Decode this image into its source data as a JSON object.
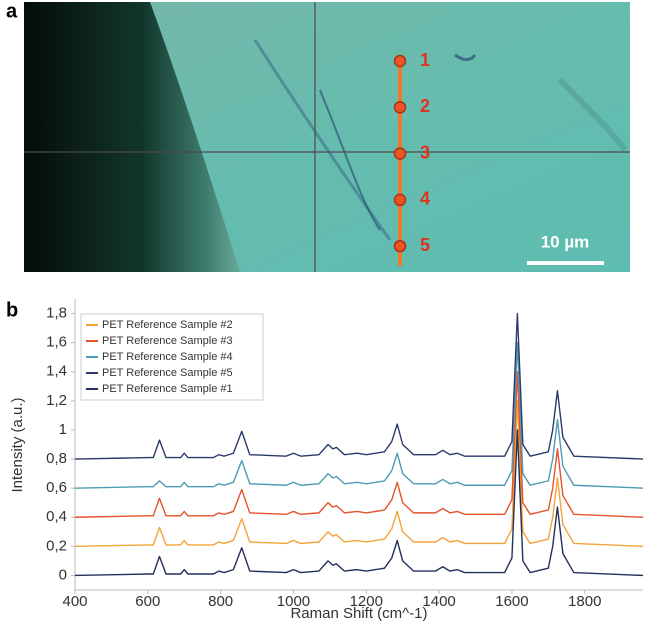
{
  "panel_a": {
    "label": "a",
    "points": [
      "1",
      "2",
      "3",
      "4",
      "5"
    ],
    "scale_bar": "10 µm"
  },
  "chart_data": {
    "type": "line",
    "panel_label": "b",
    "xlabel": "Raman Shift (cm^-1)",
    "ylabel": "Intensity (a.u.)",
    "x": [
      400,
      600,
      615,
      632,
      650,
      690,
      700,
      710,
      780,
      795,
      810,
      835,
      858,
      880,
      980,
      1000,
      1020,
      1070,
      1095,
      1108,
      1118,
      1140,
      1175,
      1200,
      1250,
      1270,
      1285,
      1300,
      1330,
      1390,
      1410,
      1430,
      1450,
      1470,
      1580,
      1600,
      1615,
      1630,
      1650,
      1700,
      1712,
      1725,
      1740,
      1770,
      1960
    ],
    "xlim": [
      400,
      1960
    ],
    "xticks": [
      400,
      600,
      800,
      1000,
      1200,
      1400,
      1600,
      1800
    ],
    "ylim": [
      -0.1,
      1.9
    ],
    "yticks": [
      0,
      {
        "value": 0.2,
        "label": "0,2"
      },
      {
        "value": 0.4,
        "label": "0,4"
      },
      {
        "value": 0.6,
        "label": "0,6"
      },
      {
        "value": 0.8,
        "label": "0,8"
      },
      1,
      {
        "value": 1.2,
        "label": "1,2"
      },
      {
        "value": 1.4,
        "label": "1,4"
      },
      {
        "value": 1.6,
        "label": "1,6"
      },
      {
        "value": 1.8,
        "label": "1,8"
      }
    ],
    "legend": "upper left",
    "series": [
      {
        "name": "PET Reference Sample #2",
        "color": "#f2a33a",
        "values": [
          0.2,
          0.21,
          0.21,
          0.33,
          0.21,
          0.21,
          0.24,
          0.21,
          0.21,
          0.23,
          0.22,
          0.24,
          0.39,
          0.23,
          0.22,
          0.24,
          0.22,
          0.23,
          0.3,
          0.27,
          0.28,
          0.23,
          0.24,
          0.23,
          0.25,
          0.32,
          0.44,
          0.3,
          0.23,
          0.23,
          0.26,
          0.23,
          0.24,
          0.22,
          0.22,
          0.32,
          1.2,
          0.3,
          0.22,
          0.25,
          0.4,
          0.67,
          0.35,
          0.22,
          0.2
        ]
      },
      {
        "name": "PET Reference Sample #3",
        "color": "#e4532c",
        "values": [
          0.4,
          0.41,
          0.41,
          0.53,
          0.41,
          0.41,
          0.44,
          0.41,
          0.41,
          0.43,
          0.42,
          0.44,
          0.59,
          0.43,
          0.42,
          0.44,
          0.42,
          0.43,
          0.5,
          0.47,
          0.48,
          0.43,
          0.44,
          0.43,
          0.45,
          0.52,
          0.64,
          0.5,
          0.43,
          0.43,
          0.46,
          0.43,
          0.44,
          0.42,
          0.42,
          0.52,
          1.4,
          0.5,
          0.42,
          0.45,
          0.6,
          0.87,
          0.55,
          0.42,
          0.4
        ]
      },
      {
        "name": "PET Reference Sample #4",
        "color": "#4d9cb3",
        "values": [
          0.6,
          0.61,
          0.61,
          0.65,
          0.61,
          0.61,
          0.64,
          0.61,
          0.61,
          0.63,
          0.62,
          0.64,
          0.79,
          0.63,
          0.62,
          0.64,
          0.62,
          0.63,
          0.7,
          0.67,
          0.68,
          0.63,
          0.64,
          0.63,
          0.65,
          0.72,
          0.84,
          0.7,
          0.63,
          0.63,
          0.66,
          0.63,
          0.64,
          0.62,
          0.62,
          0.72,
          1.6,
          0.7,
          0.62,
          0.65,
          0.8,
          1.07,
          0.75,
          0.62,
          0.6
        ]
      },
      {
        "name": "PET Reference Sample #5",
        "color": "#2b3a6b",
        "values": [
          0.8,
          0.81,
          0.81,
          0.93,
          0.81,
          0.81,
          0.84,
          0.81,
          0.81,
          0.83,
          0.82,
          0.84,
          0.99,
          0.83,
          0.82,
          0.84,
          0.82,
          0.83,
          0.9,
          0.87,
          0.88,
          0.83,
          0.84,
          0.83,
          0.85,
          0.92,
          1.04,
          0.9,
          0.83,
          0.83,
          0.86,
          0.83,
          0.84,
          0.82,
          0.82,
          0.92,
          1.8,
          0.9,
          0.82,
          0.85,
          1.0,
          1.27,
          0.95,
          0.82,
          0.8
        ]
      },
      {
        "name": "PET Reference Sample #1",
        "color": "#23305c",
        "values": [
          0,
          0.01,
          0.01,
          0.13,
          0.01,
          0.01,
          0.04,
          0.01,
          0.01,
          0.03,
          0.02,
          0.04,
          0.19,
          0.03,
          0.02,
          0.04,
          0.02,
          0.03,
          0.1,
          0.07,
          0.08,
          0.03,
          0.04,
          0.03,
          0.05,
          0.12,
          0.24,
          0.1,
          0.03,
          0.03,
          0.06,
          0.03,
          0.04,
          0.02,
          0.02,
          0.12,
          1.0,
          0.1,
          0.02,
          0.05,
          0.2,
          0.47,
          0.15,
          0.02,
          0
        ]
      }
    ]
  }
}
